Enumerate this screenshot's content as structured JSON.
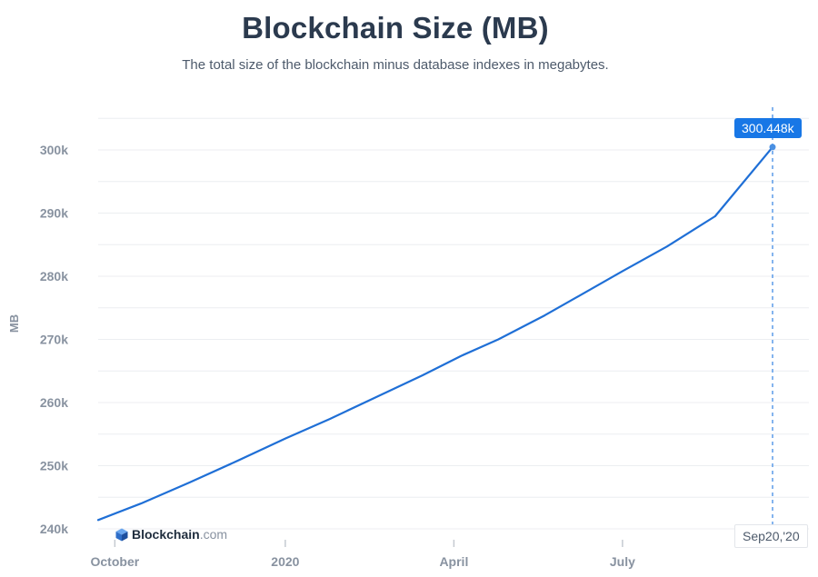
{
  "chart_data": {
    "type": "line",
    "title": "Blockchain Size (MB)",
    "subtitle": "The total size of the blockchain minus database indexes in megabytes.",
    "ylabel": "MB",
    "xlabel": "",
    "ylim": [
      240000,
      305000
    ],
    "grid": true,
    "y_ticks": [
      240000,
      250000,
      260000,
      270000,
      280000,
      290000,
      300000
    ],
    "y_tick_labels": [
      "240k",
      "250k",
      "260k",
      "270k",
      "280k",
      "290k",
      "300k"
    ],
    "x_ticks": [
      {
        "label": "October",
        "date": "2019-10-01"
      },
      {
        "label": "2020",
        "date": "2020-01-01"
      },
      {
        "label": "April",
        "date": "2020-04-01"
      },
      {
        "label": "July",
        "date": "2020-07-01"
      }
    ],
    "xlim": [
      "2019-09-22",
      "2020-09-20"
    ],
    "series": [
      {
        "name": "Blockchain Size",
        "color": "#1f6fd6",
        "points": [
          [
            "2019-09-22",
            241400
          ],
          [
            "2019-10-15",
            244000
          ],
          [
            "2019-11-10",
            247300
          ],
          [
            "2019-12-05",
            250600
          ],
          [
            "2020-01-01",
            254300
          ],
          [
            "2020-01-25",
            257400
          ],
          [
            "2020-02-20",
            261000
          ],
          [
            "2020-03-15",
            264300
          ],
          [
            "2020-04-05",
            267400
          ],
          [
            "2020-04-25",
            270000
          ],
          [
            "2020-05-20",
            273800
          ],
          [
            "2020-06-10",
            277300
          ],
          [
            "2020-07-01",
            280800
          ],
          [
            "2020-07-25",
            284700
          ],
          [
            "2020-08-20",
            289500
          ],
          [
            "2020-09-20",
            300448
          ]
        ]
      }
    ],
    "highlight": {
      "date": "2020-09-20",
      "value": 300448,
      "value_label": "300.448k",
      "date_label": "Sep20,'20"
    }
  },
  "colors": {
    "accent": "#1877e6",
    "line": "#1f6fd6",
    "grid": "#eceef1",
    "axis_text": "#8892a0",
    "title": "#2b3a4e",
    "logo_mark": "#3b82d8"
  },
  "logo": {
    "icon": "blockchain-cube-icon",
    "brand": "Blockchain",
    "tld": ".com"
  }
}
